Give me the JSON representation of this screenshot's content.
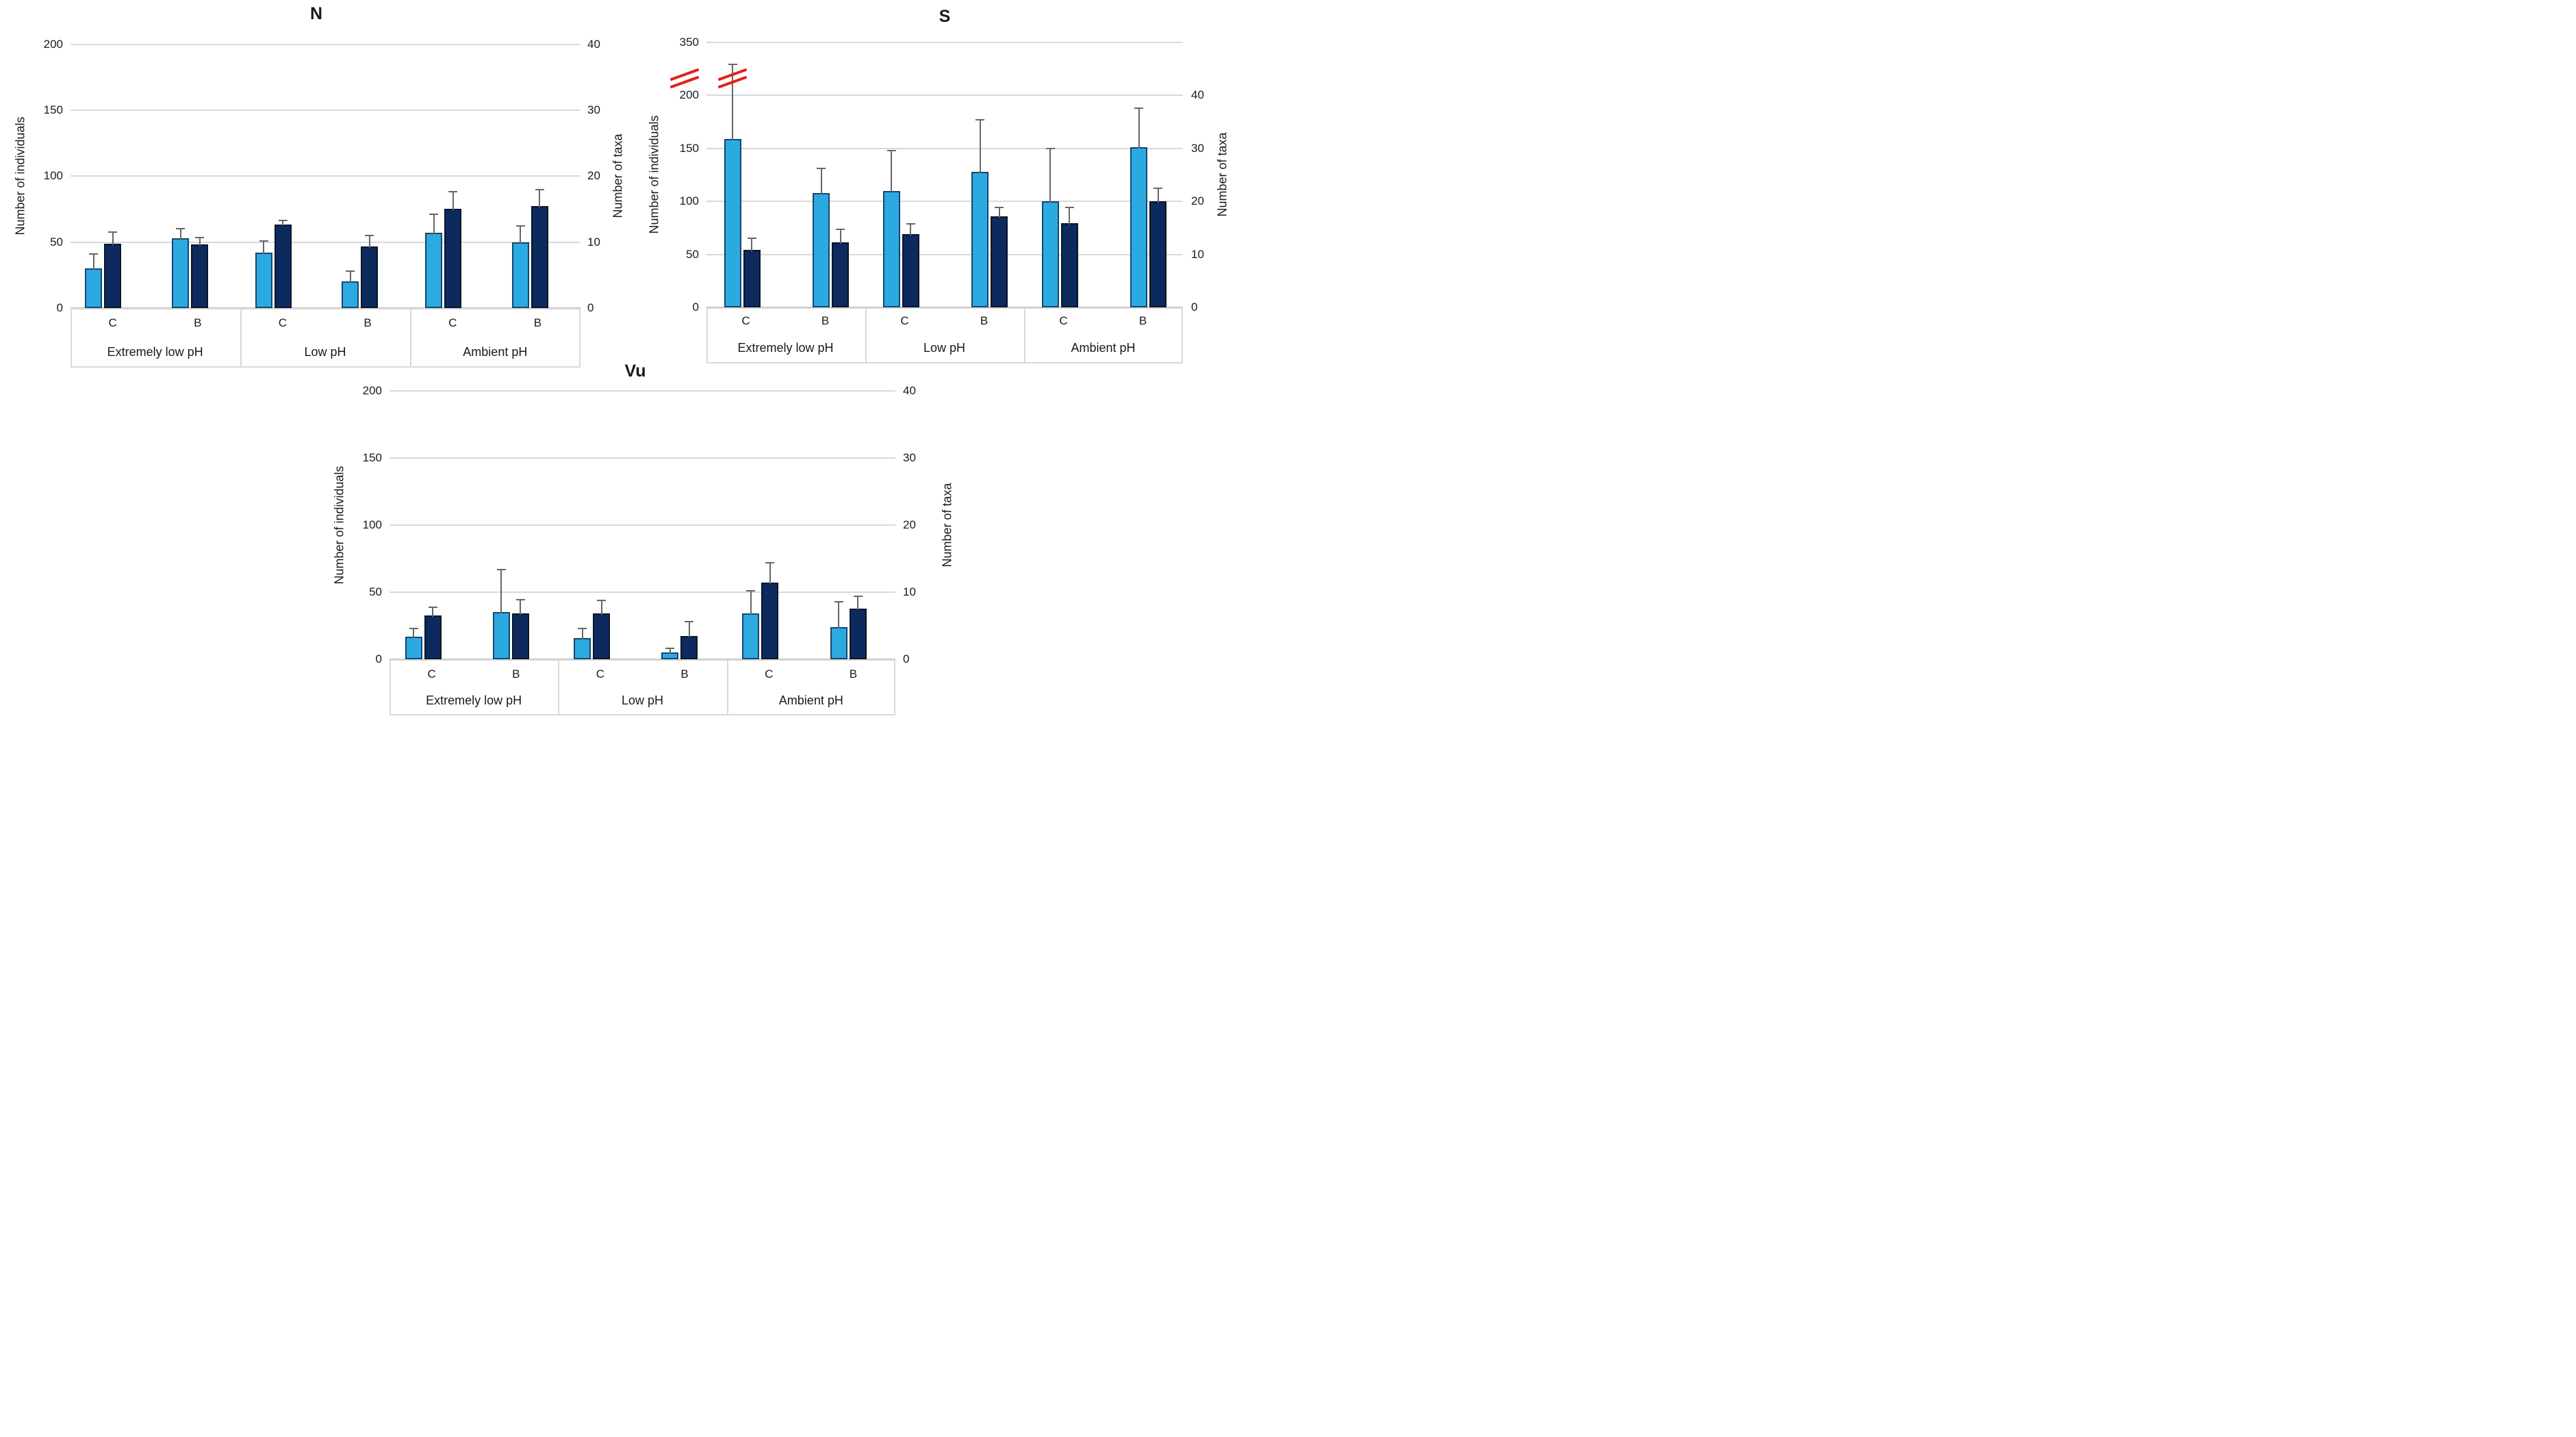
{
  "figure": {
    "background": "#FFFFFF",
    "description_titles": [
      "N",
      "S",
      "Vu"
    ]
  },
  "colors": {
    "individuals_fill": "#2BAAE2",
    "individuals_border": "#17456E",
    "taxa_fill": "#0D2A5E",
    "taxa_border": "#0A1526",
    "error_bar": "#666666",
    "gridline": "#D9D9D9",
    "axis_line": "#BFBFBF",
    "category_box_border": "#D9D9D9",
    "break_mark": "#E0231C",
    "text": "#1A1A1A"
  },
  "chart_data": [
    {
      "id": "N",
      "type": "bar",
      "title": "N",
      "left_axis": {
        "label": "Number of individuals",
        "ticks": [
          0,
          50,
          100,
          150,
          200
        ],
        "max": 200,
        "break": null
      },
      "right_axis": {
        "label": "Number of taxa",
        "ticks": [
          0,
          10,
          20,
          30,
          40
        ],
        "max": 40
      },
      "group_labels": [
        "Extremely low pH",
        "Low pH",
        "Ambient pH"
      ],
      "bar_labels": [
        "C",
        "B"
      ],
      "legend": null,
      "series": [
        {
          "name": "individuals",
          "axis": "left",
          "values": [
            [
              30,
              53
            ],
            [
              42,
              20
            ],
            [
              57,
              50
            ]
          ],
          "errors": [
            [
              11,
              7
            ],
            [
              9,
              8
            ],
            [
              14,
              12
            ]
          ]
        },
        {
          "name": "taxa",
          "axis": "right",
          "values": [
            [
              9.8,
              9.7
            ],
            [
              12.7,
              9.3
            ],
            [
              15.0,
              15.5
            ]
          ],
          "errors": [
            [
              1.7,
              1.0
            ],
            [
              0.6,
              1.7
            ],
            [
              2.6,
              2.5
            ]
          ]
        }
      ],
      "error_break_marks": []
    },
    {
      "id": "S",
      "type": "bar",
      "title": "S",
      "left_axis": {
        "label": "Number of individuals",
        "ticks": [
          0,
          50,
          100,
          150,
          200,
          350
        ],
        "max": 200,
        "break": {
          "between": [
            200,
            350
          ]
        }
      },
      "right_axis": {
        "label": "Number of taxa",
        "ticks": [
          0,
          10,
          20,
          30,
          40
        ],
        "max": 40
      },
      "group_labels": [
        "Extremely low pH",
        "Low pH",
        "Ambient pH"
      ],
      "bar_labels": [
        "C",
        "B"
      ],
      "legend": null,
      "series": [
        {
          "name": "individuals",
          "axis": "left",
          "values": [
            [
              159,
              108
            ],
            [
              110,
              128
            ],
            [
              100,
              151
            ]
          ],
          "errors": [
            [
              70,
              23
            ],
            [
              38,
              49
            ],
            [
              50,
              37
            ]
          ]
        },
        {
          "name": "taxa",
          "axis": "right",
          "values": [
            [
              10.9,
              12.3
            ],
            [
              13.8,
              17.1
            ],
            [
              15.9,
              20.0
            ]
          ],
          "errors": [
            [
              2.1,
              2.4
            ],
            [
              1.9,
              1.8
            ],
            [
              2.9,
              2.5
            ]
          ]
        }
      ],
      "error_break_marks": [
        {
          "group": 0,
          "bar": 0,
          "series": "individuals"
        }
      ]
    },
    {
      "id": "Vu",
      "type": "bar",
      "title": "Vu",
      "left_axis": {
        "label": "Number of individuals",
        "ticks": [
          0,
          50,
          100,
          150,
          200
        ],
        "max": 200,
        "break": null
      },
      "right_axis": {
        "label": "Number of taxa",
        "ticks": [
          0,
          10,
          20,
          30,
          40
        ],
        "max": 40
      },
      "group_labels": [
        "Extremely low pH",
        "Low pH",
        "Ambient pH"
      ],
      "bar_labels": [
        "C",
        "B"
      ],
      "legend": null,
      "series": [
        {
          "name": "individuals",
          "axis": "left",
          "values": [
            [
              17,
              35
            ],
            [
              16,
              5
            ],
            [
              34,
              24
            ]
          ],
          "errors": [
            [
              6,
              32
            ],
            [
              7,
              3
            ],
            [
              17,
              19
            ]
          ]
        },
        {
          "name": "taxa",
          "axis": "right",
          "values": [
            [
              6.5,
              6.8
            ],
            [
              6.8,
              3.5
            ],
            [
              11.4,
              7.6
            ]
          ],
          "errors": [
            [
              1.3,
              2.1
            ],
            [
              2.0,
              2.1
            ],
            [
              3.0,
              1.8
            ]
          ]
        }
      ],
      "error_break_marks": []
    }
  ]
}
